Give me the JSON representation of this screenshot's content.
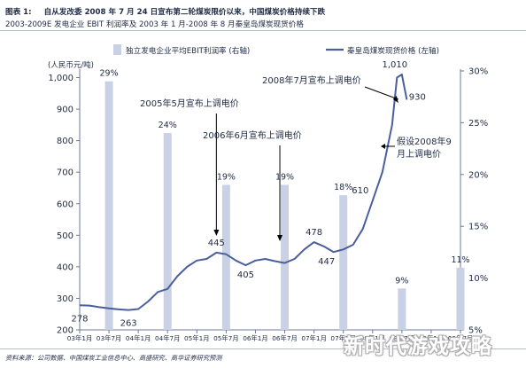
{
  "header": {
    "figure_label": "图表 1:",
    "title": "自从发改委 2008 年 7 月 24 日宣布第二轮煤炭限价以来，中国煤炭价格持续下跌",
    "subtitle": "2003-2009E 发电企业 EBIT 利润率及 2003 年 1 月-2008 年 8 月秦皇岛煤炭现货价格"
  },
  "source": "资料来源：公司数据、中国煤炭工业信息中心、高盛研究、高华证券研究预测",
  "watermark": "新时代游戏攻略",
  "chart_data": {
    "type": "combo",
    "legend": {
      "bar_label": "独立发电企业平均EBIT利润率 (右轴)",
      "line_label": "秦皇岛煤炭现货价格 (左轴)",
      "placement": "top"
    },
    "left_axis": {
      "unit_label": "(人民币元/吨)",
      "ylim": [
        200,
        1050
      ],
      "ticks": [
        "200",
        "300",
        "400",
        "500",
        "600",
        "700",
        "800",
        "900",
        "1,000"
      ]
    },
    "right_axis": {
      "ylim": [
        5,
        30
      ],
      "ticks": [
        "5%",
        "10%",
        "15%",
        "20%",
        "25%",
        "30%"
      ]
    },
    "x_ticks": [
      "03年1月",
      "03年7月",
      "04年1月",
      "04年7月",
      "05年1月",
      "05年7月",
      "06年1月",
      "06年7月",
      "07年1月",
      "07年7月",
      "08年1月",
      "08年7月",
      "09年1月",
      "09年7月"
    ],
    "bars": [
      {
        "x": "2003-07",
        "value": 29,
        "label": "29%"
      },
      {
        "x": "2004-07",
        "value": 24,
        "label": "24%"
      },
      {
        "x": "2005-07",
        "value": 19,
        "label": "19%"
      },
      {
        "x": "2006-07",
        "value": 19,
        "label": "19%"
      },
      {
        "x": "2007-07",
        "value": 18,
        "label": "18%"
      },
      {
        "x": "2008-07",
        "value": 9,
        "label": "9%"
      },
      {
        "x": "2009-07",
        "value": 11,
        "label": "11%"
      }
    ],
    "price_series": [
      [
        "2003-01",
        278
      ],
      [
        "2003-03",
        277
      ],
      [
        "2003-05",
        272
      ],
      [
        "2003-07",
        268
      ],
      [
        "2003-09",
        265
      ],
      [
        "2003-11",
        263
      ],
      [
        "2004-01",
        266
      ],
      [
        "2004-03",
        290
      ],
      [
        "2004-05",
        320
      ],
      [
        "2004-07",
        330
      ],
      [
        "2004-09",
        370
      ],
      [
        "2004-11",
        400
      ],
      [
        "2005-01",
        420
      ],
      [
        "2005-03",
        425
      ],
      [
        "2005-05",
        445
      ],
      [
        "2005-07",
        440
      ],
      [
        "2005-09",
        420
      ],
      [
        "2005-11",
        405
      ],
      [
        "2006-01",
        420
      ],
      [
        "2006-03",
        425
      ],
      [
        "2006-05",
        418
      ],
      [
        "2006-07",
        412
      ],
      [
        "2006-09",
        425
      ],
      [
        "2006-11",
        455
      ],
      [
        "2007-01",
        478
      ],
      [
        "2007-03",
        465
      ],
      [
        "2007-05",
        447
      ],
      [
        "2007-07",
        455
      ],
      [
        "2007-09",
        470
      ],
      [
        "2007-11",
        520
      ],
      [
        "2008-01",
        610
      ],
      [
        "2008-03",
        700
      ],
      [
        "2008-05",
        850
      ],
      [
        "2008-06",
        1000
      ],
      [
        "2008-07",
        1010
      ],
      [
        "2008-08",
        930
      ]
    ],
    "point_labels": [
      {
        "x": "2003-01",
        "y": 278,
        "text": "278"
      },
      {
        "x": "2003-11",
        "y": 263,
        "text": "263"
      },
      {
        "x": "2005-05",
        "y": 445,
        "text": "445"
      },
      {
        "x": "2005-11",
        "y": 405,
        "text": "405"
      },
      {
        "x": "2007-01",
        "y": 478,
        "text": "478"
      },
      {
        "x": "2007-05",
        "y": 447,
        "text": "447"
      },
      {
        "x": "2008-01",
        "y": 610,
        "text": "610"
      },
      {
        "x": "2008-07",
        "y": 1010,
        "text": "1,010"
      },
      {
        "x": "2008-08",
        "y": 930,
        "text": "930"
      }
    ],
    "annotations": [
      {
        "text": "2005年5月宣布上调电价",
        "points_to": "2005-05"
      },
      {
        "text": "2006年6月宣布上调电价",
        "points_to": "2006-06"
      },
      {
        "text": "2008年7月宣布上调电价",
        "points_to": "2008-07"
      },
      {
        "text": "假设2008年9\n月上调电价",
        "points_to": "2008-09"
      }
    ],
    "colors": {
      "bar": "#c8d1e6",
      "line": "#4a5f9c",
      "axis": "#6a7a9c",
      "text": "#1f2a44"
    },
    "grid": false
  }
}
